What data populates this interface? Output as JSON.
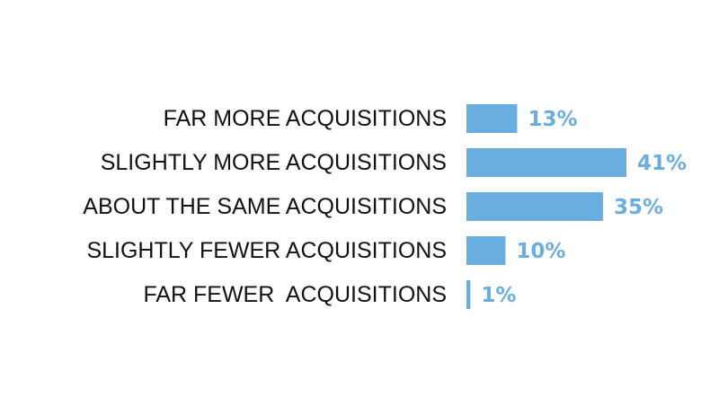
{
  "chart_data": {
    "type": "bar",
    "orientation": "horizontal",
    "categories": [
      "FAR MORE ACQUISITIONS",
      "SLIGHTLY MORE ACQUISITIONS",
      "ABOUT THE SAME ACQUISITIONS",
      "SLIGHTLY FEWER ACQUISITIONS",
      "FAR FEWER  ACQUISITIONS"
    ],
    "values": [
      13,
      41,
      35,
      10,
      1
    ],
    "value_labels": [
      "13%",
      "41%",
      "35%",
      "10%",
      "1%"
    ],
    "xlim": [
      0,
      41
    ],
    "grid": false,
    "colors": {
      "bar": "#6aaee0",
      "value_text": "#6aaee0",
      "category_text": "#111111"
    }
  }
}
